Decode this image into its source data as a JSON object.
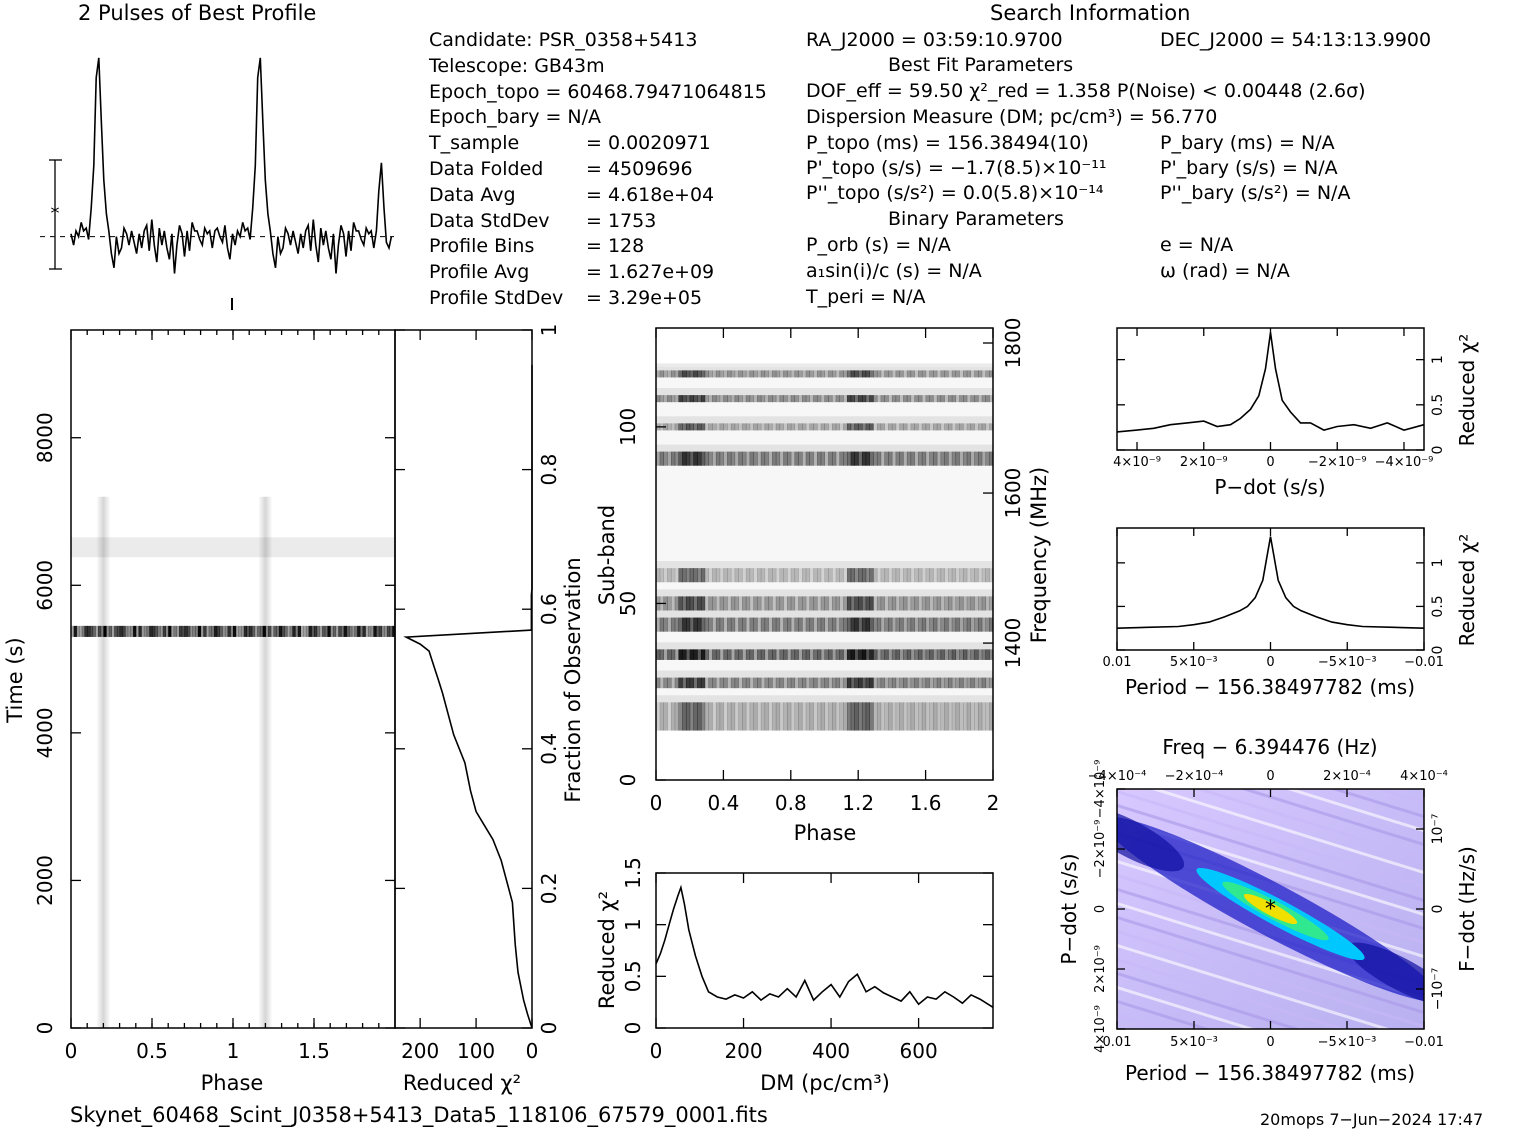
{
  "profile_title": "2 Pulses of Best Profile",
  "search_title": "Search Information",
  "left_info": [
    [
      "Candidate:  PSR_0358+5413",
      ""
    ],
    [
      "Telescope:  GB43m",
      ""
    ],
    [
      "Epoch_topo = 60468.79471064815",
      ""
    ],
    [
      "Epoch_bary = N/A",
      ""
    ],
    [
      "T_sample",
      "=  0.0020971"
    ],
    [
      "Data Folded",
      "=  4509696"
    ],
    [
      "Data Avg",
      "=  4.618e+04"
    ],
    [
      "Data StdDev",
      "=  1753"
    ],
    [
      "Profile Bins",
      "=  128"
    ],
    [
      "Profile Avg",
      "=  1.627e+09"
    ],
    [
      "Profile StdDev",
      "=  3.29e+05"
    ]
  ],
  "search_info": {
    "ra": "RA_J2000 = 03:59:10.9700",
    "dec": "DEC_J2000 = 54:13:13.9900",
    "best_fit": "Best Fit Parameters",
    "dof": "DOF_eff = 59.50  χ²_red = 1.358  P(Noise) < 0.00448  (2.6σ)",
    "dm": "Dispersion Measure (DM; pc/cm³) = 56.770",
    "p_topo": "P_topo (ms) =  156.38494(10)",
    "p_bary": "P_bary (ms) = N/A",
    "pd_topo": "P'_topo (s/s) = −1.7(8.5)×10⁻¹¹",
    "pd_bary": "P'_bary (s/s) = N/A",
    "pdd_topo": "P''_topo (s/s²) = 0.0(5.8)×10⁻¹⁴",
    "pdd_bary": "P''_bary (s/s²) = N/A",
    "binary": "Binary Parameters",
    "p_orb": "P_orb (s) = N/A",
    "e": "e = N/A",
    "a1": "a₁sin(i)/c (s) = N/A",
    "omega": "ω (rad) = N/A",
    "t_peri": "T_peri = N/A"
  },
  "footer": {
    "filename": "Skynet_60468_Scint_J0358+5413_Data5_118106_67579_0001.fits",
    "stamp": "20mops  7−Jun−2024 17:47"
  },
  "colors": {
    "line": "#000000",
    "waterfall": "#000000",
    "ppdot_dark": "#1010c0",
    "ppdot_peak": "#f0e000"
  },
  "chart_data": [
    {
      "name": "profile",
      "type": "line",
      "title": "2 Pulses of Best Profile",
      "x": [
        0,
        0.016,
        0.031,
        0.047,
        0.063,
        0.078,
        0.094,
        0.109,
        0.125,
        0.141,
        0.156,
        0.172,
        0.188,
        0.203,
        0.219,
        0.234,
        0.25,
        0.266,
        0.281,
        0.297,
        0.313,
        0.328,
        0.344,
        0.359,
        0.375,
        0.391,
        0.406,
        0.422,
        0.438,
        0.453,
        0.469,
        0.484,
        0.5,
        0.516,
        0.531,
        0.547,
        0.563,
        0.578,
        0.594,
        0.609,
        0.625,
        0.641,
        0.656,
        0.672,
        0.688,
        0.703,
        0.719,
        0.734,
        0.75,
        0.766,
        0.781,
        0.797,
        0.813,
        0.828,
        0.844,
        0.859,
        0.875,
        0.891,
        0.906,
        0.922,
        0.938,
        0.953,
        0.969,
        0.984,
        1.0,
        1.016,
        1.031,
        1.047,
        1.063,
        1.078,
        1.094,
        1.109,
        1.125,
        1.141,
        1.156,
        1.172,
        1.188,
        1.203,
        1.219,
        1.234,
        1.25,
        1.266,
        1.281,
        1.297,
        1.313,
        1.328,
        1.344,
        1.359,
        1.375,
        1.391,
        1.406,
        1.422,
        1.438,
        1.453,
        1.469,
        1.484,
        1.5,
        1.516,
        1.531,
        1.547,
        1.563,
        1.578,
        1.594,
        1.609,
        1.625,
        1.641,
        1.656,
        1.672,
        1.688,
        1.703,
        1.719,
        1.734,
        1.75,
        1.766,
        1.781,
        1.797,
        1.813,
        1.828,
        1.844,
        1.859,
        1.875,
        1.891,
        1.906,
        1.922,
        1.938,
        1.953,
        1.969,
        1.984
      ],
      "values": [
        0.1,
        -0.3,
        0.2,
        0.0,
        0.5,
        0.2,
        0.3,
        -0.1,
        1.0,
        2.5,
        5.6,
        6.3,
        4.0,
        2.0,
        0.8,
        0.2,
        -0.6,
        -1.1,
        0.0,
        -0.6,
        -0.4,
        0.3,
        0.1,
        -0.3,
        0.2,
        -0.2,
        -0.6,
        0.1,
        -0.4,
        0.2,
        0.4,
        -0.5,
        0.6,
        -0.3,
        -0.9,
        0.3,
        -0.3,
        0.2,
        -0.4,
        -0.8,
        0.1,
        -1.3,
        -0.3,
        0.4,
        0.1,
        -0.7,
        0.2,
        -0.5,
        0.5,
        0.2,
        0.2,
        -0.1,
        -0.3,
        0.3,
        0.1,
        0.2,
        -0.4,
        0.2,
        0.3,
        0.0,
        -0.2,
        0.4,
        -0.4,
        -0.8,
        0.1,
        -0.3,
        0.2,
        0.0,
        0.5,
        0.2,
        0.3,
        -0.1,
        1.0,
        2.5,
        5.6,
        6.3,
        4.0,
        2.0,
        0.8,
        0.2,
        -0.6,
        -1.1,
        0.0,
        -0.6,
        -0.4,
        0.3,
        0.1,
        -0.3,
        0.2,
        -0.2,
        -0.6,
        0.1,
        -0.4,
        0.2,
        0.4,
        -0.5,
        0.6,
        -0.3,
        -0.9,
        0.3,
        -0.3,
        0.2,
        -0.4,
        -0.8,
        0.1,
        -1.3,
        -0.3,
        0.4,
        0.1,
        -0.7,
        0.2,
        -0.5,
        0.5,
        0.2,
        0.2,
        -0.1,
        -0.3,
        0.3,
        0.1,
        0.2,
        -0.4,
        0.2,
        1.6,
        2.6,
        1.0,
        -0.2,
        -0.4,
        0.0
      ],
      "ylim": [
        -1.6,
        7.0
      ]
    },
    {
      "name": "time_vs_phase",
      "type": "heatmap",
      "xlabel": "Phase",
      "ylabel": "Time (s)",
      "xlim": [
        0,
        2
      ],
      "ylim": [
        0,
        9460
      ],
      "x_ticks": [
        "0",
        "0.5",
        "1",
        "1.5"
      ],
      "y_ticks": [
        "0",
        "2000",
        "4000",
        "6000",
        "8000"
      ],
      "pulse_phases": [
        0.2,
        1.2
      ],
      "bands": [
        {
          "t0": 5300,
          "t1": 5450,
          "level": 0.85
        },
        {
          "t0": 6380,
          "t1": 6650,
          "level": 0.08
        }
      ]
    },
    {
      "name": "reduced_chi2_vs_time",
      "type": "line",
      "xlabel": "Reduced χ²",
      "ylabel": "Fraction of Observation",
      "xlim": [
        245,
        0
      ],
      "ylim": [
        0,
        1
      ],
      "x_ticks": [
        "200",
        "100",
        "0"
      ],
      "y_ticks": [
        "0",
        "0.2",
        "0.4",
        "0.6",
        "0.8",
        "1"
      ],
      "x": [
        0,
        8,
        15,
        20,
        25,
        30,
        35,
        45,
        55,
        70,
        85,
        100,
        110,
        120,
        140,
        150,
        160,
        168,
        172,
        180,
        184,
        200,
        225,
        1,
        1,
        0,
        0
      ],
      "y": [
        0,
        0.02,
        0.04,
        0.06,
        0.08,
        0.12,
        0.18,
        0.21,
        0.24,
        0.27,
        0.29,
        0.31,
        0.34,
        0.38,
        0.42,
        0.45,
        0.48,
        0.5,
        0.51,
        0.53,
        0.54,
        0.55,
        0.56,
        0.57,
        0.62,
        0.63,
        0.95
      ]
    },
    {
      "name": "subband_vs_phase",
      "type": "heatmap",
      "xlabel": "Phase",
      "ylabel": "Sub-band",
      "y2label": "Frequency (MHz)",
      "xlim": [
        0,
        2
      ],
      "ylim": [
        0,
        128
      ],
      "x_ticks": [
        "0",
        "0.4",
        "0.8",
        "1.2",
        "1.6",
        "2"
      ],
      "y_ticks": [
        "0",
        "50",
        "100"
      ],
      "y2_ticks": [
        "1400",
        "1600",
        "1800"
      ],
      "active_bands": [
        [
          14,
          22,
          0.45
        ],
        [
          26,
          29,
          0.7
        ],
        [
          34,
          37,
          0.9
        ],
        [
          42,
          46,
          0.75
        ],
        [
          48,
          52,
          0.6
        ],
        [
          56,
          60,
          0.4
        ],
        [
          89,
          93,
          0.75
        ],
        [
          99,
          101,
          0.5
        ],
        [
          107,
          109,
          0.65
        ],
        [
          114,
          116,
          0.6
        ]
      ]
    },
    {
      "name": "chi2_vs_dm",
      "type": "line",
      "xlabel": "DM (pc/cm³)",
      "ylabel": "Reduced χ²",
      "xlim": [
        0,
        770
      ],
      "ylim": [
        0,
        1.5
      ],
      "x_ticks": [
        "0",
        "200",
        "400",
        "600"
      ],
      "y_ticks": [
        "0",
        "0.5",
        "1",
        "1.5"
      ],
      "x": [
        0,
        10,
        20,
        30,
        40,
        50,
        57,
        65,
        75,
        90,
        105,
        120,
        140,
        160,
        180,
        200,
        220,
        240,
        260,
        280,
        300,
        320,
        340,
        360,
        380,
        400,
        420,
        440,
        460,
        480,
        500,
        520,
        540,
        560,
        580,
        600,
        620,
        640,
        660,
        680,
        700,
        720,
        740,
        770
      ],
      "y": [
        0.62,
        0.72,
        0.85,
        1.0,
        1.15,
        1.28,
        1.36,
        1.2,
        0.95,
        0.7,
        0.5,
        0.35,
        0.3,
        0.28,
        0.32,
        0.29,
        0.35,
        0.27,
        0.33,
        0.3,
        0.38,
        0.3,
        0.46,
        0.27,
        0.35,
        0.42,
        0.3,
        0.45,
        0.52,
        0.35,
        0.4,
        0.34,
        0.3,
        0.26,
        0.35,
        0.23,
        0.3,
        0.28,
        0.35,
        0.3,
        0.24,
        0.32,
        0.28,
        0.2
      ]
    },
    {
      "name": "chi2_vs_pdot",
      "type": "line",
      "xlabel": "P−dot (s/s)",
      "ylabel": "Reduced χ²",
      "xlim": [
        4.6e-09,
        -4.6e-09
      ],
      "ylim": [
        0,
        1.35
      ],
      "x_ticks": [
        "4×10⁻⁹",
        "2×10⁻⁹",
        "0",
        "−2×10⁻⁹",
        "−4×10⁻⁹"
      ],
      "y_ticks": [
        "0",
        "0.5",
        "1"
      ],
      "x": [
        4.6e-09,
        4e-09,
        3.5e-09,
        3e-09,
        2.5e-09,
        2e-09,
        1.6e-09,
        1.2e-09,
        9e-10,
        6e-10,
        3.5e-10,
        1.5e-10,
        0,
        -1.5e-10,
        -3.5e-10,
        -6e-10,
        -9e-10,
        -1.2e-09,
        -1.6e-09,
        -2e-09,
        -2.5e-09,
        -3e-09,
        -3.5e-09,
        -4e-09,
        -4.6e-09
      ],
      "y": [
        0.2,
        0.22,
        0.24,
        0.28,
        0.3,
        0.32,
        0.26,
        0.28,
        0.35,
        0.45,
        0.6,
        0.9,
        1.3,
        0.9,
        0.55,
        0.42,
        0.3,
        0.3,
        0.22,
        0.26,
        0.28,
        0.24,
        0.3,
        0.22,
        0.28
      ]
    },
    {
      "name": "chi2_vs_period",
      "type": "line",
      "xlabel": "Period − 156.38497782 (ms)",
      "ylabel": "Reduced χ²",
      "xlim": [
        0.01,
        -0.01
      ],
      "ylim": [
        0,
        1.4
      ],
      "x_ticks": [
        "0.01",
        "5×10⁻³",
        "0",
        "−5×10⁻³",
        "−0.01"
      ],
      "y_ticks": [
        "0",
        "0.5",
        "1"
      ],
      "x": [
        0.01,
        0.008,
        0.006,
        0.005,
        0.004,
        0.003,
        0.002,
        0.0015,
        0.001,
        0.0005,
        0.0002,
        0,
        -0.0002,
        -0.0005,
        -0.001,
        -0.0015,
        -0.002,
        -0.003,
        -0.004,
        -0.005,
        -0.006,
        -0.008,
        -0.01
      ],
      "y": [
        0.25,
        0.26,
        0.27,
        0.29,
        0.32,
        0.38,
        0.45,
        0.5,
        0.6,
        0.8,
        1.1,
        1.3,
        1.1,
        0.8,
        0.6,
        0.5,
        0.45,
        0.38,
        0.32,
        0.29,
        0.27,
        0.26,
        0.25
      ]
    },
    {
      "name": "ppdot_plane",
      "type": "heatmap",
      "title": "Freq − 6.394476 (Hz)",
      "xlabel": "Period − 156.38497782 (ms)",
      "ylabel": "P−dot (s/s)",
      "y2label": "F−dot (Hz/s)",
      "x_ticks": [
        "0.01",
        "5×10⁻³",
        "0",
        "−5×10⁻³",
        "−0.01"
      ],
      "top_ticks": [
        "−4×10⁻⁴",
        "−2×10⁻⁴",
        "0",
        "2×10⁻⁴",
        "4×10⁻⁴"
      ],
      "y_ticks": [
        "4×10⁻⁹",
        "2×10⁻⁹",
        "0",
        "−2×10⁻⁹",
        "−4×10⁻⁹"
      ],
      "y2_ticks": [
        "10⁻⁷",
        "0",
        "−10⁻⁷"
      ],
      "peak": [
        0,
        0
      ]
    }
  ]
}
